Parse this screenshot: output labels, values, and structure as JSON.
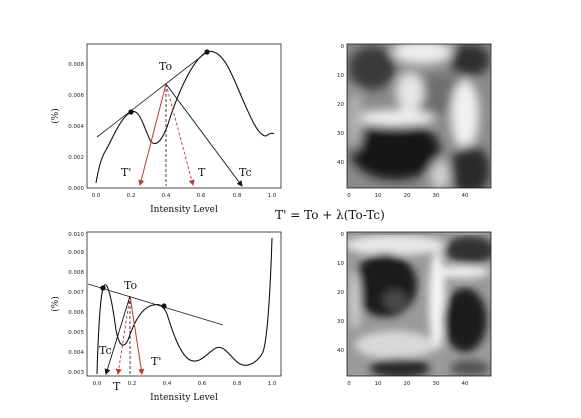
{
  "formula": "T' = To + λ(To-Tc)",
  "top_plot": {
    "ylabel": "(%)",
    "xlabel": "Intensity Level",
    "xticks": [
      "0.0",
      "0.2",
      "0.4",
      "0.6",
      "0.8",
      "1.0"
    ],
    "yticks": [
      "0.000",
      "0.002",
      "0.004",
      "0.006",
      "0.008"
    ],
    "labels": {
      "To": "To",
      "T_prime": "T'",
      "T": "T",
      "Tc": "Tc"
    }
  },
  "bottom_plot": {
    "ylabel": "(%)",
    "xlabel": "Intensity Level",
    "xticks": [
      "0.0",
      "0.2",
      "0.4",
      "0.6",
      "0.8",
      "1.0"
    ],
    "yticks": [
      "0.003",
      "0.004",
      "0.005",
      "0.006",
      "0.007",
      "0.008",
      "0.009",
      "0.010"
    ],
    "labels": {
      "To": "To",
      "Tc": "Tc",
      "T": "T",
      "T_prime": "T'"
    }
  },
  "top_image": {
    "xticks": [
      "0",
      "10",
      "20",
      "30",
      "40"
    ],
    "yticks": [
      "0",
      "10",
      "20",
      "30",
      "40"
    ]
  },
  "bottom_image": {
    "xticks": [
      "0",
      "10",
      "20",
      "30",
      "40"
    ],
    "yticks": [
      "0",
      "10",
      "20",
      "30",
      "40"
    ]
  },
  "colors": {
    "arrow_red": "#c0392b",
    "curve": "#111111"
  }
}
